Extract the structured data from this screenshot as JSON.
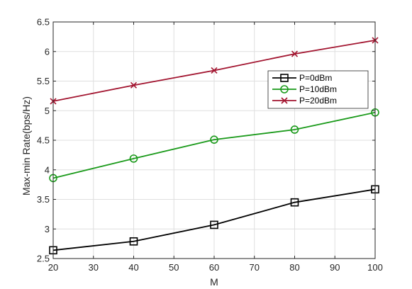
{
  "chart_data": {
    "type": "line",
    "title": "",
    "xlabel": "M",
    "ylabel": "Max-min Rate(bps/Hz)",
    "x": [
      20,
      40,
      60,
      80,
      100
    ],
    "xlim": [
      20,
      100
    ],
    "ylim": [
      2.5,
      6.5
    ],
    "xticks": [
      "20",
      "30",
      "40",
      "50",
      "60",
      "70",
      "80",
      "90",
      "100"
    ],
    "yticks": [
      "2.5",
      "3",
      "3.5",
      "4",
      "4.5",
      "5",
      "5.5",
      "6",
      "6.5"
    ],
    "grid": true,
    "legend_position": "top-right",
    "series": [
      {
        "name": "P=0dBm",
        "values": [
          2.64,
          2.79,
          3.07,
          3.45,
          3.67
        ],
        "color": "#000000",
        "marker": "square"
      },
      {
        "name": "P=10dBm",
        "values": [
          3.86,
          4.19,
          4.51,
          4.68,
          4.97
        ],
        "color": "#1a9a1a",
        "marker": "circle"
      },
      {
        "name": "P=20dBm",
        "values": [
          5.16,
          5.43,
          5.68,
          5.96,
          6.19
        ],
        "color": "#a2142f",
        "marker": "x"
      }
    ]
  }
}
